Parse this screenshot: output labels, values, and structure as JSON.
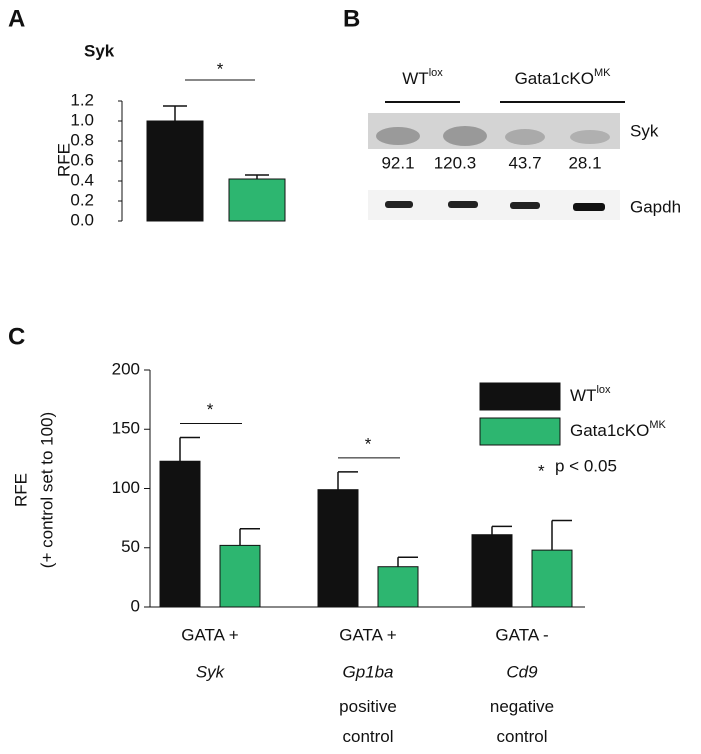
{
  "chart_data": [
    {
      "type": "bar",
      "panel_label": "A",
      "title": "Syk",
      "ylabel": "RFE",
      "categories": [
        null,
        null
      ],
      "values": [
        1.0,
        0.42
      ],
      "errors": [
        0.15,
        0.04
      ],
      "colors": [
        "#111111",
        "#2db670"
      ],
      "significance": "*",
      "ylim": [
        0,
        1.2
      ],
      "yticks": [
        {
          "value": 0,
          "label": "0.0"
        },
        {
          "value": 0.2,
          "label": "0.2"
        },
        {
          "value": 0.4,
          "label": "0.4"
        },
        {
          "value": 0.6,
          "label": "0.6"
        },
        {
          "value": 0.8,
          "label": "0.8"
        },
        {
          "value": 1,
          "label": "1.0"
        },
        {
          "value": 1.2,
          "label": "1.2"
        }
      ]
    },
    {
      "type": "grouped-bar",
      "panel_label": "C",
      "ylabel": "RFE",
      "ylabel2": "(+ control set to 100)",
      "categories": [
        "GATA +",
        "GATA +",
        "GATA -"
      ],
      "gene_labels": [
        "Syk",
        "Gp1ba",
        "Cd9"
      ],
      "sub_labels": [
        null,
        "positive control",
        "negative control"
      ],
      "series": [
        {
          "name": "WT",
          "name_sup": "lox",
          "color": "#111111",
          "values": [
            123,
            99,
            61
          ],
          "errors": [
            20,
            15,
            7
          ]
        },
        {
          "name": "Gata1cKO",
          "name_sup": "MK",
          "color": "#2db670",
          "values": [
            52,
            34,
            48
          ],
          "errors": [
            14,
            8,
            25
          ]
        }
      ],
      "significance": [
        "*",
        "*",
        null
      ],
      "note_symbol": "*",
      "note_text": "p < 0.05",
      "legend": "upper right",
      "ylim": [
        0,
        200
      ],
      "yticks": [
        0,
        50,
        100,
        150,
        200
      ]
    }
  ],
  "blot": {
    "panel_label": "B",
    "groups": [
      {
        "label": "WT",
        "sup": "lox"
      },
      {
        "label": "Gata1cKO",
        "sup": "MK"
      }
    ],
    "rows": [
      "Syk",
      "Gapdh"
    ],
    "band_values": [
      92.1,
      120.3,
      43.7,
      28.1
    ]
  }
}
